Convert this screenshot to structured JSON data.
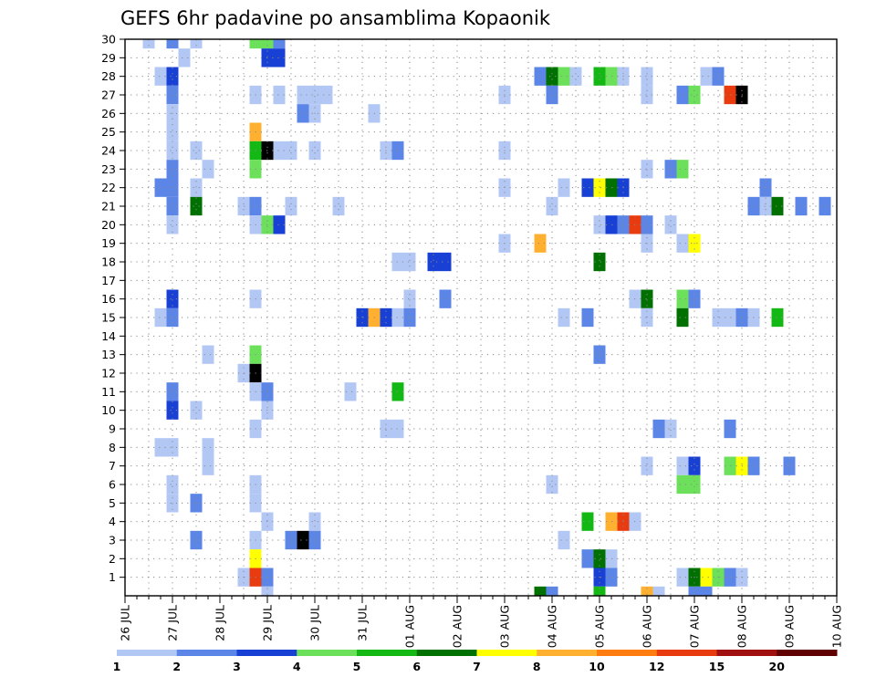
{
  "chart_data": {
    "type": "heatmap",
    "title": "GEFS 6hr padavine po ansamblima Kopaonik",
    "y_ticks": [
      1,
      2,
      3,
      4,
      5,
      6,
      7,
      8,
      9,
      10,
      11,
      12,
      13,
      14,
      15,
      16,
      17,
      18,
      19,
      20,
      21,
      22,
      23,
      24,
      25,
      26,
      27,
      28,
      29,
      30
    ],
    "x_ticks": [
      "26 JUL",
      "27 JUL",
      "28 JUL",
      "29 JUL",
      "30 JUL",
      "31 JUL",
      "01 AUG",
      "02 AUG",
      "03 AUG",
      "04 AUG",
      "05 AUG",
      "06 AUG",
      "07 AUG",
      "08 AUG",
      "09 AUG",
      "10 AUG"
    ],
    "x_unit": "6h steps from 26 JUL 00Z",
    "xlim": [
      0,
      60
    ],
    "ylim": [
      0,
      30
    ],
    "grid": true,
    "legend": {
      "placement": "bottom",
      "labels": [
        "1",
        "2",
        "3",
        "4",
        "5",
        "6",
        "7",
        "8",
        "10",
        "12",
        "15",
        "20"
      ],
      "colors": [
        "#b3c7f5",
        "#5b85e6",
        "#1840d4",
        "#6ce05a",
        "#14b814",
        "#007000",
        "#ffff00",
        "#ffb030",
        "#ff7c10",
        "#e83c10",
        "#a01010",
        "#600000"
      ]
    },
    "cells": [
      [
        2,
        30,
        1
      ],
      [
        4,
        30,
        2
      ],
      [
        6,
        30,
        1
      ],
      [
        11,
        30,
        4
      ],
      [
        12,
        30,
        4
      ],
      [
        13,
        30,
        2
      ],
      [
        12,
        29,
        3
      ],
      [
        13,
        29,
        3
      ],
      [
        5,
        29,
        1
      ],
      [
        3,
        28,
        1
      ],
      [
        4,
        28,
        3
      ],
      [
        35,
        28,
        2
      ],
      [
        36,
        28,
        6
      ],
      [
        37,
        28,
        4
      ],
      [
        38,
        28,
        1
      ],
      [
        40,
        28,
        5
      ],
      [
        41,
        28,
        4
      ],
      [
        42,
        28,
        1
      ],
      [
        44,
        28,
        1
      ],
      [
        49,
        28,
        1
      ],
      [
        50,
        28,
        2
      ],
      [
        4,
        27,
        2
      ],
      [
        11,
        27,
        1
      ],
      [
        13,
        27,
        1
      ],
      [
        15,
        27,
        1
      ],
      [
        16,
        27,
        1
      ],
      [
        17,
        27,
        1
      ],
      [
        32,
        27,
        1
      ],
      [
        36,
        27,
        2
      ],
      [
        44,
        27,
        1
      ],
      [
        47,
        27,
        2
      ],
      [
        48,
        27,
        4
      ],
      [
        51,
        27,
        10
      ],
      [
        52,
        27,
        20
      ],
      [
        4,
        26,
        1
      ],
      [
        15,
        26,
        2
      ],
      [
        16,
        26,
        1
      ],
      [
        21,
        26,
        1
      ],
      [
        4,
        25,
        1
      ],
      [
        11,
        25,
        8
      ],
      [
        4,
        24,
        1
      ],
      [
        6,
        24,
        1
      ],
      [
        11,
        24,
        5
      ],
      [
        12,
        24,
        15
      ],
      [
        13,
        24,
        1
      ],
      [
        14,
        24,
        1
      ],
      [
        16,
        24,
        1
      ],
      [
        22,
        24,
        1
      ],
      [
        23,
        24,
        2
      ],
      [
        32,
        24,
        1
      ],
      [
        4,
        23,
        2
      ],
      [
        7,
        23,
        1
      ],
      [
        11,
        23,
        4
      ],
      [
        44,
        23,
        1
      ],
      [
        46,
        23,
        2
      ],
      [
        47,
        23,
        4
      ],
      [
        3,
        22,
        2
      ],
      [
        4,
        22,
        2
      ],
      [
        6,
        22,
        1
      ],
      [
        32,
        22,
        1
      ],
      [
        37,
        22,
        1
      ],
      [
        39,
        22,
        3
      ],
      [
        40,
        22,
        7
      ],
      [
        41,
        22,
        6
      ],
      [
        42,
        22,
        3
      ],
      [
        54,
        22,
        2
      ],
      [
        4,
        21,
        2
      ],
      [
        6,
        21,
        6
      ],
      [
        10,
        21,
        1
      ],
      [
        11,
        21,
        2
      ],
      [
        14,
        21,
        1
      ],
      [
        18,
        21,
        1
      ],
      [
        36,
        21,
        1
      ],
      [
        53,
        21,
        2
      ],
      [
        54,
        21,
        1
      ],
      [
        55,
        21,
        6
      ],
      [
        57,
        21,
        2
      ],
      [
        59,
        21,
        2
      ],
      [
        4,
        20,
        1
      ],
      [
        11,
        20,
        1
      ],
      [
        12,
        20,
        4
      ],
      [
        13,
        20,
        3
      ],
      [
        40,
        20,
        1
      ],
      [
        41,
        20,
        3
      ],
      [
        42,
        20,
        2
      ],
      [
        43,
        20,
        10
      ],
      [
        44,
        20,
        2
      ],
      [
        46,
        20,
        1
      ],
      [
        32,
        19,
        1
      ],
      [
        35,
        19,
        8
      ],
      [
        44,
        19,
        1
      ],
      [
        47,
        19,
        1
      ],
      [
        48,
        19,
        7
      ],
      [
        23,
        18,
        1
      ],
      [
        24,
        18,
        1
      ],
      [
        26,
        18,
        3
      ],
      [
        27,
        18,
        3
      ],
      [
        40,
        18,
        6
      ],
      [
        4,
        16,
        3
      ],
      [
        11,
        16,
        1
      ],
      [
        24,
        16,
        1
      ],
      [
        27,
        16,
        2
      ],
      [
        43,
        16,
        1
      ],
      [
        44,
        16,
        6
      ],
      [
        47,
        16,
        4
      ],
      [
        48,
        16,
        2
      ],
      [
        3,
        15,
        1
      ],
      [
        4,
        15,
        2
      ],
      [
        20,
        15,
        3
      ],
      [
        21,
        15,
        8
      ],
      [
        22,
        15,
        3
      ],
      [
        23,
        15,
        1
      ],
      [
        24,
        15,
        2
      ],
      [
        37,
        15,
        1
      ],
      [
        39,
        15,
        2
      ],
      [
        44,
        15,
        1
      ],
      [
        47,
        15,
        6
      ],
      [
        50,
        15,
        1
      ],
      [
        51,
        15,
        1
      ],
      [
        52,
        15,
        2
      ],
      [
        53,
        15,
        1
      ],
      [
        55,
        15,
        5
      ],
      [
        7,
        13,
        1
      ],
      [
        11,
        13,
        4
      ],
      [
        40,
        13,
        2
      ],
      [
        10,
        12,
        1
      ],
      [
        11,
        12,
        15
      ],
      [
        4,
        11,
        2
      ],
      [
        11,
        11,
        1
      ],
      [
        12,
        11,
        2
      ],
      [
        19,
        11,
        1
      ],
      [
        23,
        11,
        5
      ],
      [
        4,
        10,
        3
      ],
      [
        6,
        10,
        1
      ],
      [
        12,
        10,
        1
      ],
      [
        11,
        9,
        1
      ],
      [
        22,
        9,
        1
      ],
      [
        23,
        9,
        1
      ],
      [
        45,
        9,
        2
      ],
      [
        46,
        9,
        1
      ],
      [
        51,
        9,
        2
      ],
      [
        3,
        8,
        1
      ],
      [
        4,
        8,
        1
      ],
      [
        7,
        8,
        1
      ],
      [
        7,
        7,
        1
      ],
      [
        44,
        7,
        1
      ],
      [
        47,
        7,
        1
      ],
      [
        48,
        7,
        3
      ],
      [
        51,
        7,
        4
      ],
      [
        52,
        7,
        7
      ],
      [
        53,
        7,
        2
      ],
      [
        56,
        7,
        2
      ],
      [
        4,
        6,
        1
      ],
      [
        11,
        6,
        1
      ],
      [
        36,
        6,
        1
      ],
      [
        47,
        6,
        4
      ],
      [
        48,
        6,
        4
      ],
      [
        4,
        5,
        1
      ],
      [
        6,
        5,
        2
      ],
      [
        11,
        5,
        1
      ],
      [
        12,
        4,
        1
      ],
      [
        16,
        4,
        1
      ],
      [
        39,
        4,
        5
      ],
      [
        41,
        4,
        8
      ],
      [
        42,
        4,
        10
      ],
      [
        43,
        4,
        1
      ],
      [
        6,
        3,
        2
      ],
      [
        11,
        3,
        1
      ],
      [
        14,
        3,
        2
      ],
      [
        15,
        3,
        15
      ],
      [
        16,
        3,
        2
      ],
      [
        37,
        3,
        1
      ],
      [
        11,
        2,
        7
      ],
      [
        39,
        2,
        2
      ],
      [
        40,
        2,
        6
      ],
      [
        41,
        2,
        1
      ],
      [
        10,
        1,
        1
      ],
      [
        11,
        1,
        10
      ],
      [
        12,
        1,
        2
      ],
      [
        40,
        1,
        3
      ],
      [
        41,
        1,
        2
      ],
      [
        47,
        1,
        1
      ],
      [
        48,
        1,
        6
      ],
      [
        49,
        1,
        7
      ],
      [
        50,
        1,
        4
      ],
      [
        51,
        1,
        2
      ],
      [
        52,
        1,
        1
      ],
      [
        12,
        0,
        1
      ],
      [
        35,
        0,
        6
      ],
      [
        36,
        0,
        2
      ],
      [
        40,
        0,
        5
      ],
      [
        44,
        0,
        8
      ],
      [
        45,
        0,
        1
      ],
      [
        48,
        0,
        2
      ],
      [
        49,
        0,
        2
      ]
    ]
  }
}
